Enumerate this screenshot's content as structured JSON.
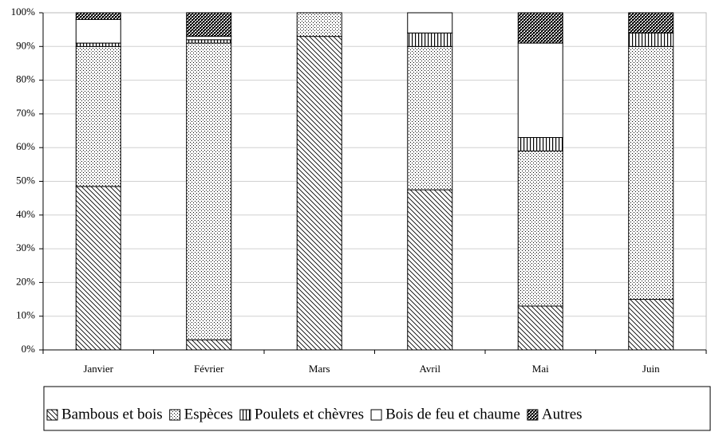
{
  "chart_data": {
    "type": "stacked_bar",
    "categories": [
      "Janvier",
      "Février",
      "Mars",
      "Avril",
      "Mai",
      "Juin"
    ],
    "series": [
      {
        "name": "Bambous et bois",
        "pattern": "diagonal",
        "color": "#000000",
        "values": [
          48.5,
          3,
          93,
          47.5,
          13,
          15
        ]
      },
      {
        "name": "Espèces",
        "pattern": "dots",
        "color": "#000000",
        "values": [
          41.5,
          88,
          7,
          42.5,
          46,
          75
        ]
      },
      {
        "name": "Poulets et chèvres",
        "pattern": "vertical",
        "color": "#000000",
        "values": [
          1,
          1,
          0,
          4,
          4,
          4
        ]
      },
      {
        "name": "Bois de feu et chaume",
        "pattern": "blank",
        "color": "#000000",
        "values": [
          7,
          1,
          0,
          6,
          28,
          0
        ]
      },
      {
        "name": "Autres",
        "pattern": "checker",
        "color": "#000000",
        "values": [
          2,
          7,
          0,
          0,
          9,
          6
        ]
      }
    ],
    "ylim": [
      0,
      100
    ],
    "yticks": [
      {
        "value": 0,
        "label": "0%"
      },
      {
        "value": 10,
        "label": "10%"
      },
      {
        "value": 20,
        "label": "20%"
      },
      {
        "value": 30,
        "label": "30%"
      },
      {
        "value": 40,
        "label": "40%"
      },
      {
        "value": 50,
        "label": "50%"
      },
      {
        "value": 60,
        "label": "60%"
      },
      {
        "value": 70,
        "label": "70%"
      },
      {
        "value": 80,
        "label": "80%"
      },
      {
        "value": 90,
        "label": "90%"
      },
      {
        "value": 100,
        "label": "100%"
      }
    ],
    "grid": true,
    "legend": "bottom"
  }
}
